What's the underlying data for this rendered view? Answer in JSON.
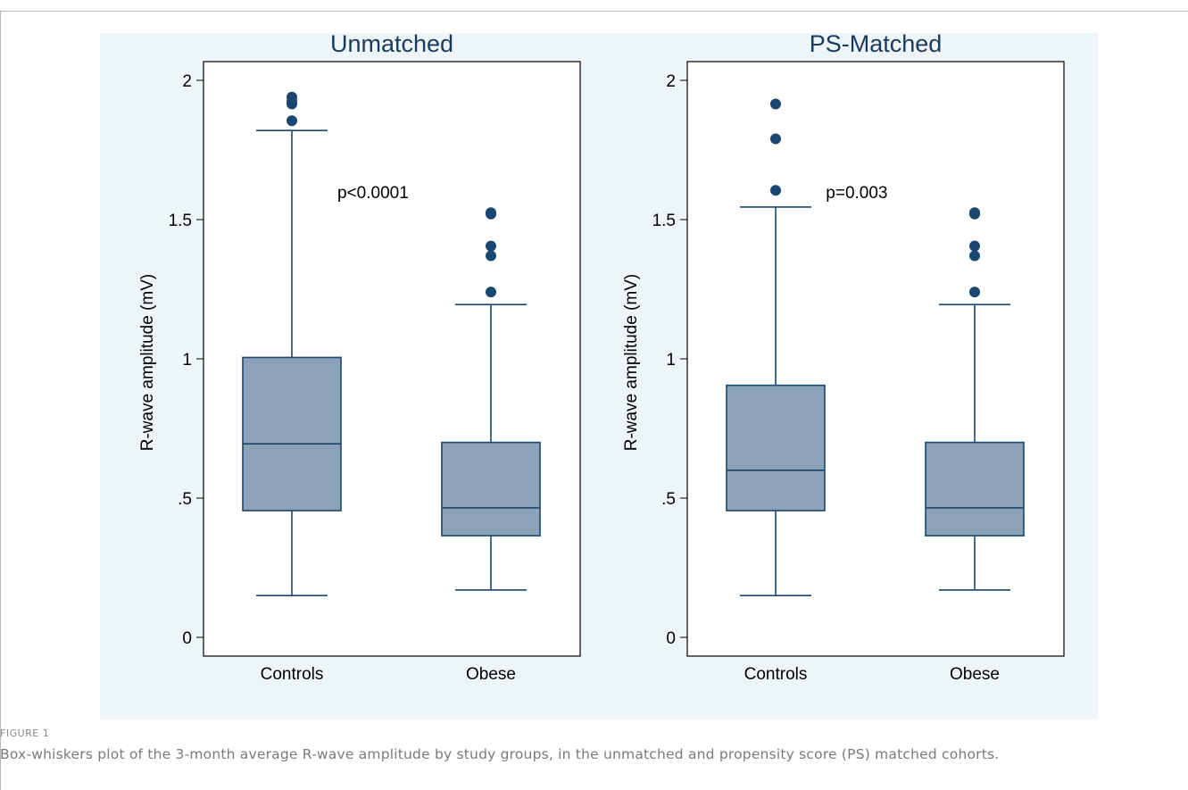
{
  "figure": {
    "label": "FIGURE 1",
    "caption": "Box-whiskers plot of the 3-month average R-wave amplitude by study groups, in the unmatched and propensity score (PS) matched cohorts."
  },
  "colors": {
    "background": "#eef5f9",
    "box_fill": "#8ba2b8",
    "box_stroke": "#1a476f",
    "outlier": "#1a476f"
  },
  "chart_data": [
    {
      "type": "box",
      "title": "Unmatched",
      "ylabel": "R-wave amplitude (mV)",
      "ylim": [
        0,
        2
      ],
      "yticks": [
        0,
        0.5,
        1,
        1.5,
        2
      ],
      "ytick_labels": [
        "0",
        ".5",
        "1",
        "1.5",
        "2"
      ],
      "categories": [
        "Controls",
        "Obese"
      ],
      "boxes": [
        {
          "name": "Controls",
          "whisker_low": 0.15,
          "q1": 0.455,
          "median": 0.695,
          "q3": 1.005,
          "whisker_high": 1.82,
          "outliers": [
            1.855,
            1.915,
            1.925,
            1.94
          ]
        },
        {
          "name": "Obese",
          "whisker_low": 0.17,
          "q1": 0.365,
          "median": 0.465,
          "q3": 0.7,
          "whisker_high": 1.195,
          "outliers": [
            1.24,
            1.37,
            1.405,
            1.52,
            1.525
          ]
        }
      ],
      "annotation": "p<0.0001",
      "annotation_pos": {
        "x": 0.45,
        "y": 1.6
      }
    },
    {
      "type": "box",
      "title": "PS-Matched",
      "ylabel": "R-wave amplitude (mV)",
      "ylim": [
        0,
        2
      ],
      "yticks": [
        0,
        0.5,
        1,
        1.5,
        2
      ],
      "ytick_labels": [
        "0",
        ".5",
        "1",
        "1.5",
        "2"
      ],
      "categories": [
        "Controls",
        "Obese"
      ],
      "boxes": [
        {
          "name": "Controls",
          "whisker_low": 0.15,
          "q1": 0.455,
          "median": 0.6,
          "q3": 0.905,
          "whisker_high": 1.545,
          "outliers": [
            1.605,
            1.79,
            1.915
          ]
        },
        {
          "name": "Obese",
          "whisker_low": 0.17,
          "q1": 0.365,
          "median": 0.465,
          "q3": 0.7,
          "whisker_high": 1.195,
          "outliers": [
            1.24,
            1.37,
            1.405,
            1.52,
            1.525
          ]
        }
      ],
      "annotation": "p=0.003",
      "annotation_pos": {
        "x": 0.45,
        "y": 1.6
      }
    }
  ]
}
